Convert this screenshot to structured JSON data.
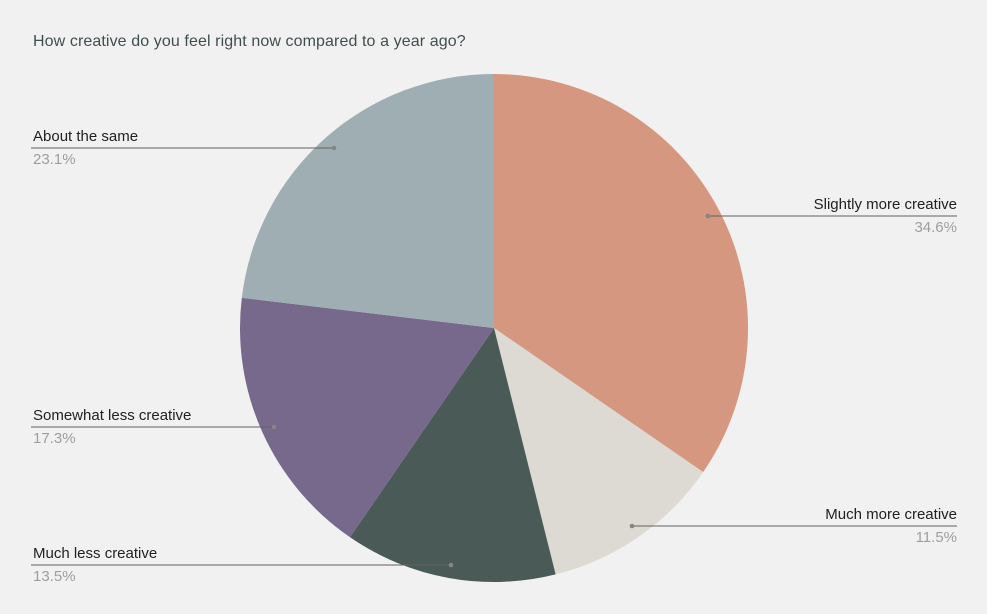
{
  "title": "How creative do you feel right now compared to a year ago?",
  "colors": {
    "background": "#f1f1f1",
    "title": "#414e50",
    "label_name": "#212121",
    "label_pct": "#9e9e9e",
    "leader_line": "#616161",
    "leader_dot": "#858585"
  },
  "chart_data": {
    "type": "pie",
    "title": "How creative do you feel right now compared to a year ago?",
    "unit": "%",
    "start_angle_deg": 0,
    "direction": "clockwise",
    "legend_position": "none",
    "labels": "outside-callouts",
    "slices": [
      {
        "label": "Slightly more creative",
        "value": 34.6,
        "pct_label": "34.6%",
        "color": "#d5977f"
      },
      {
        "label": "Much more creative",
        "value": 11.5,
        "pct_label": "11.5%",
        "color": "#dcdad2"
      },
      {
        "label": "Much less creative",
        "value": 13.5,
        "pct_label": "13.5%",
        "color": "#4a5a57"
      },
      {
        "label": "Somewhat less creative",
        "value": 17.3,
        "pct_label": "17.3%",
        "color": "#77698c"
      },
      {
        "label": "About the same",
        "value": 23.1,
        "pct_label": "23.1%",
        "color": "#9eaeb3"
      }
    ]
  }
}
